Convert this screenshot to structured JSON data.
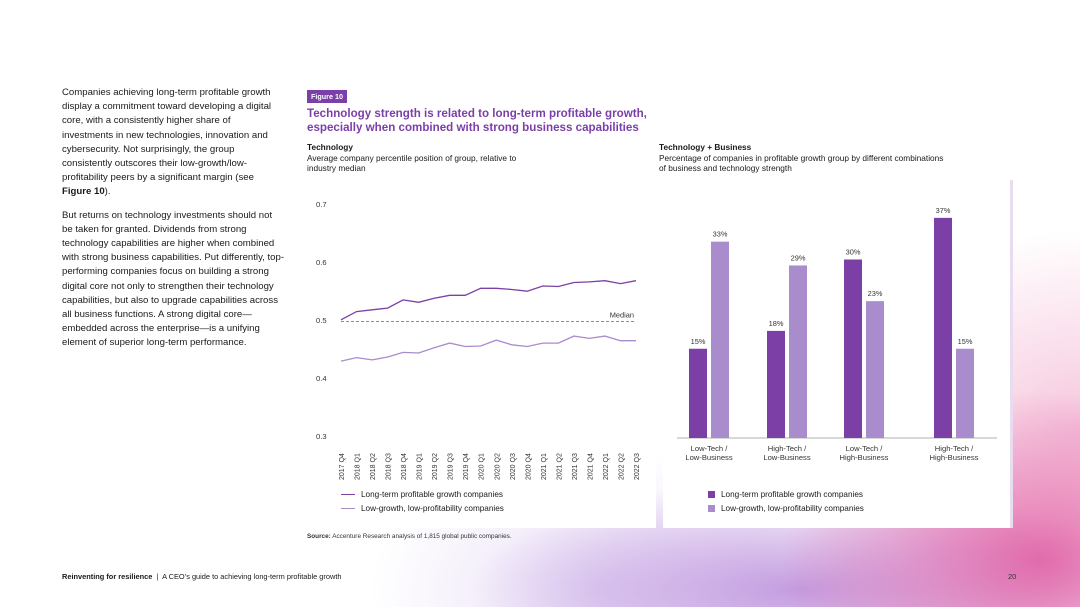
{
  "body_text": {
    "p1_lead": "Companies achieving long-term profitable growth display a commitment toward developing a digital core, with a consistently higher share of investments in new technologies, innovation and cybersecurity. Not surprisingly, the group consistently outscores their low-growth/low-profitability peers by a significant margin (see ",
    "p1_ref": "Figure 10",
    "p1_tail": ").",
    "p2": "But returns on technology investments should not be taken for granted. Dividends from strong technology capabilities are higher when combined with strong business capabilities. Put differently, top-performing companies focus on building a strong digital core not only to strengthen their technology capabilities, but also to upgrade capabilities across all business functions. A strong digital core—embedded across the enterprise—is a unifying element of superior long-term performance."
  },
  "figure": {
    "badge": "Figure 10",
    "title": "Technology strength is related to long-term profitable growth, especially when combined with strong business capabilities",
    "source_label": "Source:",
    "source_text": " Accenture Research analysis of 1,815 global public companies."
  },
  "colors": {
    "dark_purple": "#7c3fa6",
    "light_purple": "#a98ccc",
    "accent": "#7b3fa8"
  },
  "chart_data": [
    {
      "type": "line",
      "title": "Technology",
      "subtitle": "Average company percentile position of group, relative to industry median",
      "x": [
        "2017 Q4",
        "2018 Q1",
        "2018 Q2",
        "2018 Q3",
        "2018 Q4",
        "2019 Q1",
        "2019 Q2",
        "2019 Q3",
        "2019 Q4",
        "2020 Q1",
        "2020 Q2",
        "2020 Q3",
        "2020 Q4",
        "2021 Q1",
        "2021 Q2",
        "2021 Q3",
        "2021 Q4",
        "2022 Q1",
        "2022 Q2",
        "2022 Q3"
      ],
      "ylim": [
        0.3,
        0.7
      ],
      "yticks": [
        "0.7",
        "0.6",
        "0.5",
        "0.4",
        "0.3"
      ],
      "reference_line": {
        "value": 0.5,
        "label": "Median"
      },
      "series": [
        {
          "name": "Long-term profitable growth companies",
          "color": "#7c3fa6",
          "values": [
            0.503,
            0.517,
            0.52,
            0.523,
            0.537,
            0.533,
            0.54,
            0.545,
            0.545,
            0.557,
            0.557,
            0.555,
            0.552,
            0.561,
            0.56,
            0.567,
            0.568,
            0.57,
            0.565,
            0.57
          ]
        },
        {
          "name": "Low-growth, low-profitability companies",
          "color": "#a98ccc",
          "values": [
            0.432,
            0.438,
            0.434,
            0.439,
            0.447,
            0.446,
            0.455,
            0.463,
            0.457,
            0.458,
            0.468,
            0.46,
            0.457,
            0.463,
            0.463,
            0.475,
            0.471,
            0.475,
            0.467,
            0.467
          ]
        }
      ]
    },
    {
      "type": "bar",
      "title": "Technology + Business",
      "subtitle": "Percentage of companies in profitable growth group by different combinations of business and technology strength",
      "categories": [
        [
          "Low-Tech /",
          "Low-Business"
        ],
        [
          "High-Tech /",
          "Low-Business"
        ],
        [
          "Low-Tech /",
          "High-Business"
        ],
        [
          "High-Tech /",
          "High-Business"
        ]
      ],
      "ylim": [
        0,
        40
      ],
      "series": [
        {
          "name": "Long-term profitable growth companies",
          "color": "#7c3fa6",
          "values": [
            15,
            18,
            30,
            37
          ],
          "labels": [
            "15%",
            "18%",
            "30%",
            "37%"
          ]
        },
        {
          "name": "Low-growth, low-profitability companies",
          "color": "#a98ccc",
          "values": [
            33,
            29,
            23,
            15
          ],
          "labels": [
            "33%",
            "29%",
            "23%",
            "15%"
          ]
        }
      ]
    }
  ],
  "footer": {
    "bold": "Reinventing for resilience",
    "sep": "  |  ",
    "rest": "A CEO’s guide to achieving long-term profitable growth",
    "page": "20"
  }
}
